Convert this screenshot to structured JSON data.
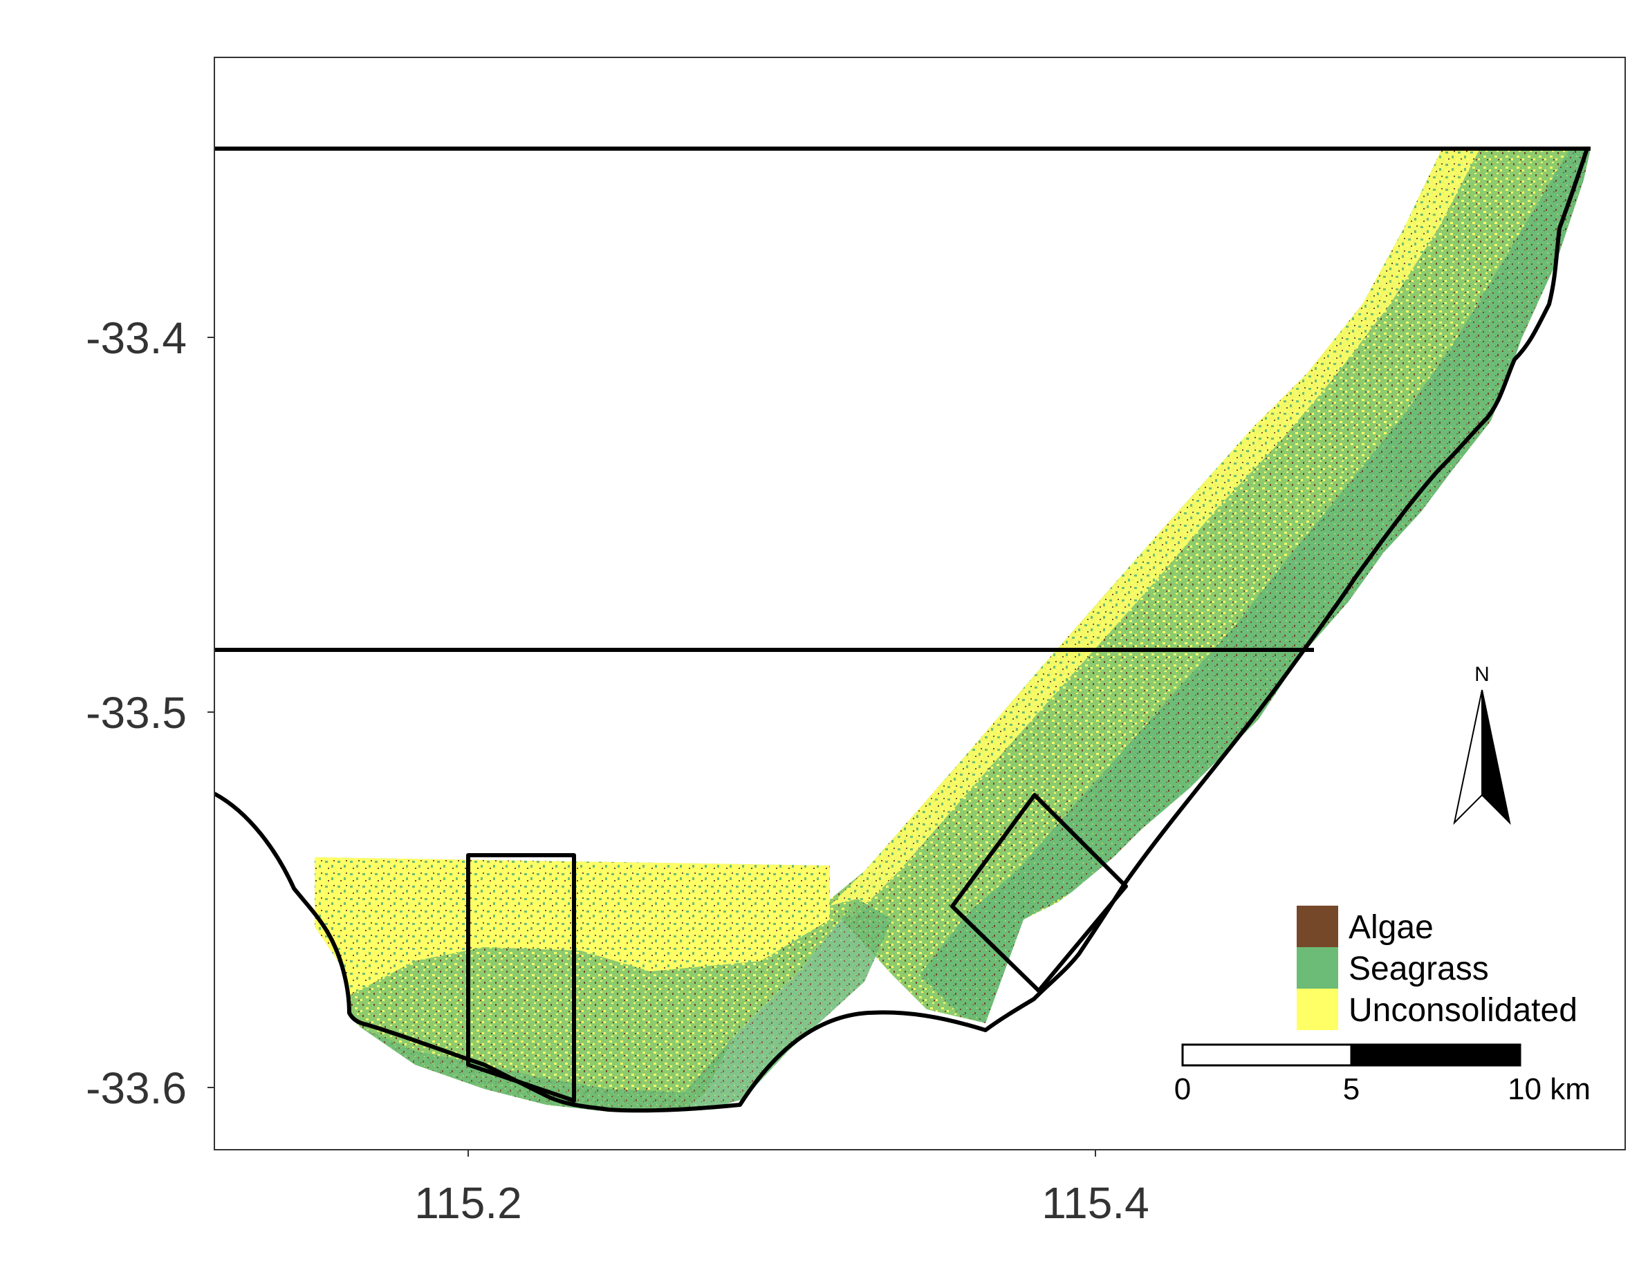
{
  "map": {
    "x_axis": {
      "ticks": [
        "115.2",
        "115.4"
      ],
      "tick_values": [
        115.2,
        115.4
      ]
    },
    "y_axis": {
      "ticks": [
        "-33.4",
        "-33.5",
        "-33.6"
      ],
      "tick_values": [
        -33.4,
        -33.5,
        -33.6
      ]
    },
    "legend": {
      "placement": "bottom-right",
      "items": [
        {
          "label": "Algae",
          "color": "#75482a"
        },
        {
          "label": "Seagrass",
          "color": "#6cbb76"
        },
        {
          "label": "Unconsolidated",
          "color": "#ffff66"
        }
      ]
    },
    "scale_bar": {
      "labels": [
        "0",
        "5",
        "10 km"
      ],
      "segments_km": [
        5,
        5
      ]
    },
    "north_arrow": {
      "label": "N"
    },
    "colors": {
      "coastline": "#000000",
      "frame": "#333333",
      "background": "#ffffff"
    }
  }
}
